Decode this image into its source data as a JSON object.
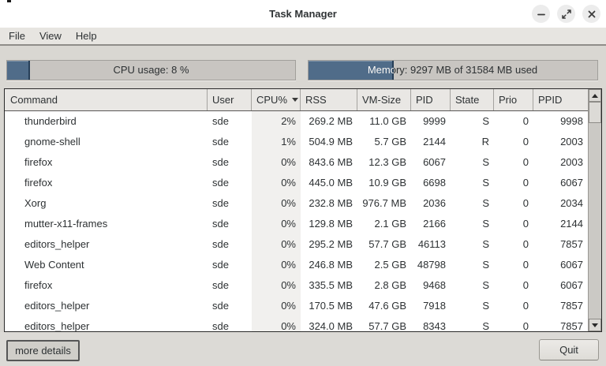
{
  "window": {
    "title": "Task Manager"
  },
  "menu": {
    "items": [
      {
        "label": "File"
      },
      {
        "label": "View"
      },
      {
        "label": "Help"
      }
    ]
  },
  "gauges": {
    "cpu": {
      "label": "CPU usage: 8 %",
      "percent": 8
    },
    "memory": {
      "label": "Memory: 9297 MB of 31584 MB used",
      "percent": 29.4
    }
  },
  "table": {
    "columns": [
      {
        "label": "Command"
      },
      {
        "label": "User"
      },
      {
        "label": "CPU%",
        "sorted": "desc"
      },
      {
        "label": "RSS"
      },
      {
        "label": "VM-Size"
      },
      {
        "label": "PID"
      },
      {
        "label": "State"
      },
      {
        "label": "Prio"
      },
      {
        "label": "PPID"
      }
    ],
    "rows": [
      [
        "thunderbird",
        "sde",
        "2%",
        "269.2 MB",
        "11.0 GB",
        "9999",
        "S",
        "0",
        "9998"
      ],
      [
        "gnome-shell",
        "sde",
        "1%",
        "504.9 MB",
        "5.7 GB",
        "2144",
        "R",
        "0",
        "2003"
      ],
      [
        "firefox",
        "sde",
        "0%",
        "843.6 MB",
        "12.3 GB",
        "6067",
        "S",
        "0",
        "2003"
      ],
      [
        "firefox",
        "sde",
        "0%",
        "445.0 MB",
        "10.9 GB",
        "6698",
        "S",
        "0",
        "6067"
      ],
      [
        "Xorg",
        "sde",
        "0%",
        "232.8 MB",
        "976.7 MB",
        "2036",
        "S",
        "0",
        "2034"
      ],
      [
        "mutter-x11-frames",
        "sde",
        "0%",
        "129.8 MB",
        "2.1 GB",
        "2166",
        "S",
        "0",
        "2144"
      ],
      [
        "editors_helper",
        "sde",
        "0%",
        "295.2 MB",
        "57.7 GB",
        "46113",
        "S",
        "0",
        "7857"
      ],
      [
        "Web Content",
        "sde",
        "0%",
        "246.8 MB",
        "2.5 GB",
        "48798",
        "S",
        "0",
        "6067"
      ],
      [
        "firefox",
        "sde",
        "0%",
        "335.5 MB",
        "2.8 GB",
        "9468",
        "S",
        "0",
        "6067"
      ],
      [
        "editors_helper",
        "sde",
        "0%",
        "170.5 MB",
        "47.6 GB",
        "7918",
        "S",
        "0",
        "7857"
      ],
      [
        "editors_helper",
        "sde",
        "0%",
        "324.0 MB",
        "57.7 GB",
        "8343",
        "S",
        "0",
        "7857"
      ]
    ]
  },
  "footer": {
    "more_details_label": "more details",
    "quit_label": "Quit"
  },
  "colors": {
    "accent_fill": "#506c89",
    "accent_edge": "#273f58",
    "trough": "#c8c5c1",
    "header_bg": "#e9e7e4",
    "sorted_column_bg": "#f1f0ee",
    "text": "#2d3133"
  }
}
